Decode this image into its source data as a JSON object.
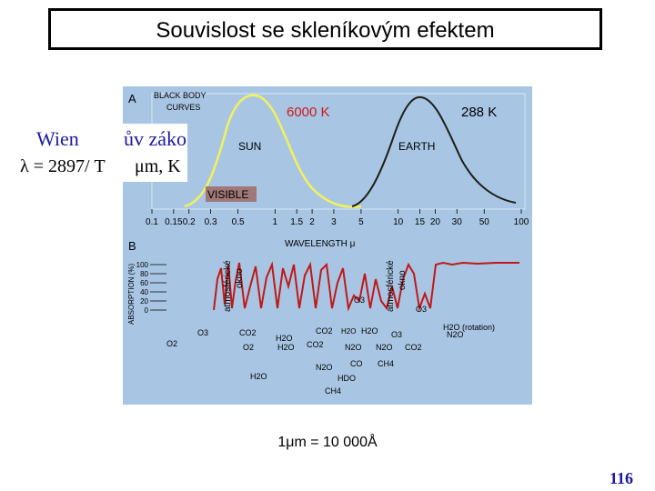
{
  "title": "Souvislost se skleníkovým efektem",
  "figure": {
    "background": "#a8c6e4",
    "panel_a": {
      "letter": "A",
      "heading_line1": "BLACK BODY",
      "heading_line2": "CURVES",
      "temp_sun": "6000 K",
      "temp_earth": "288 K",
      "sun_label": "SUN",
      "earth_label": "EARTH",
      "visible_label": "VISIBLE",
      "sun_color": "#f2f25a",
      "earth_color": "#1e1e14",
      "temp_color": "#d01818"
    },
    "axis": {
      "ticks": [
        "0.1",
        "0.15",
        "0.2",
        "0.3",
        "0.5",
        "1",
        "1.5",
        "2",
        "3",
        "5",
        "10",
        "15",
        "20",
        "30",
        "50",
        "100"
      ],
      "label": "WAVELENGTH μ"
    },
    "panel_b": {
      "letter": "B",
      "ylabel": "ABSORPTION (%)",
      "yticks": [
        "100",
        "80",
        "60",
        "40",
        "20",
        "0"
      ],
      "window1": [
        "atmosférické",
        "okno"
      ],
      "window2": [
        "atmosférické",
        "okno"
      ],
      "absorption_color": "#c01818",
      "gases": [
        "O2",
        "H2O",
        "H2O",
        "CO2",
        "CO2",
        "H2O",
        "O3",
        "N2O",
        "CO",
        "H2O",
        "CH4",
        "O3",
        "N2O",
        "CO2",
        "CH4",
        "O3",
        "H2O (rotation)",
        "O2",
        "O3",
        "N2O",
        "HDO",
        "N2O",
        "CO2",
        "H2O"
      ]
    }
  },
  "wien": {
    "line1_left": "Wien",
    "line1_right": "ův záko",
    "line2_left": "λ = 2897/ T",
    "line2_right": "μm, K"
  },
  "note": "1μm = 10 000Å",
  "page_number": "116"
}
